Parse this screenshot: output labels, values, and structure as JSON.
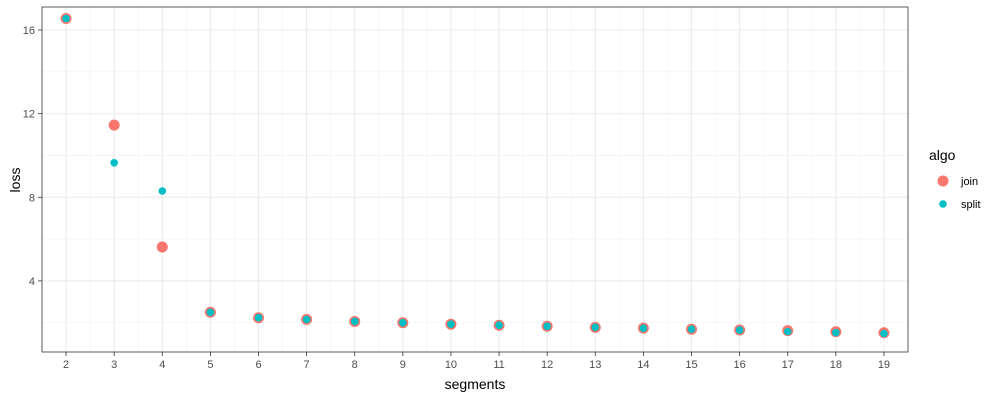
{
  "chart_data": {
    "type": "scatter",
    "xlabel": "segments",
    "ylabel": "loss",
    "x_ticks": [
      2,
      3,
      4,
      5,
      6,
      7,
      8,
      9,
      10,
      11,
      12,
      13,
      14,
      15,
      16,
      17,
      18,
      19
    ],
    "y_ticks": [
      4,
      8,
      12,
      16
    ],
    "xlim": [
      1.5,
      19.5
    ],
    "ylim": [
      0.6,
      17.1
    ],
    "grid": true,
    "legend": {
      "title": "algo",
      "placement": "right"
    },
    "series": [
      {
        "name": "join",
        "color": "#F8766D",
        "x": [
          2,
          3,
          4,
          5,
          6,
          7,
          8,
          9,
          10,
          11,
          12,
          13,
          14,
          15,
          16,
          17,
          18,
          19
        ],
        "y": [
          16.55,
          11.45,
          5.62,
          2.5,
          2.24,
          2.16,
          2.06,
          2.0,
          1.93,
          1.88,
          1.83,
          1.78,
          1.74,
          1.69,
          1.65,
          1.62,
          1.57,
          1.52
        ]
      },
      {
        "name": "split",
        "color": "#00BFC4",
        "x": [
          2,
          3,
          4,
          5,
          6,
          7,
          8,
          9,
          10,
          11,
          12,
          13,
          14,
          15,
          16,
          17,
          18,
          19
        ],
        "y": [
          16.55,
          9.65,
          8.3,
          2.5,
          2.24,
          2.16,
          2.06,
          2.0,
          1.93,
          1.88,
          1.83,
          1.78,
          1.74,
          1.69,
          1.65,
          1.58,
          1.53,
          1.48
        ]
      }
    ]
  }
}
